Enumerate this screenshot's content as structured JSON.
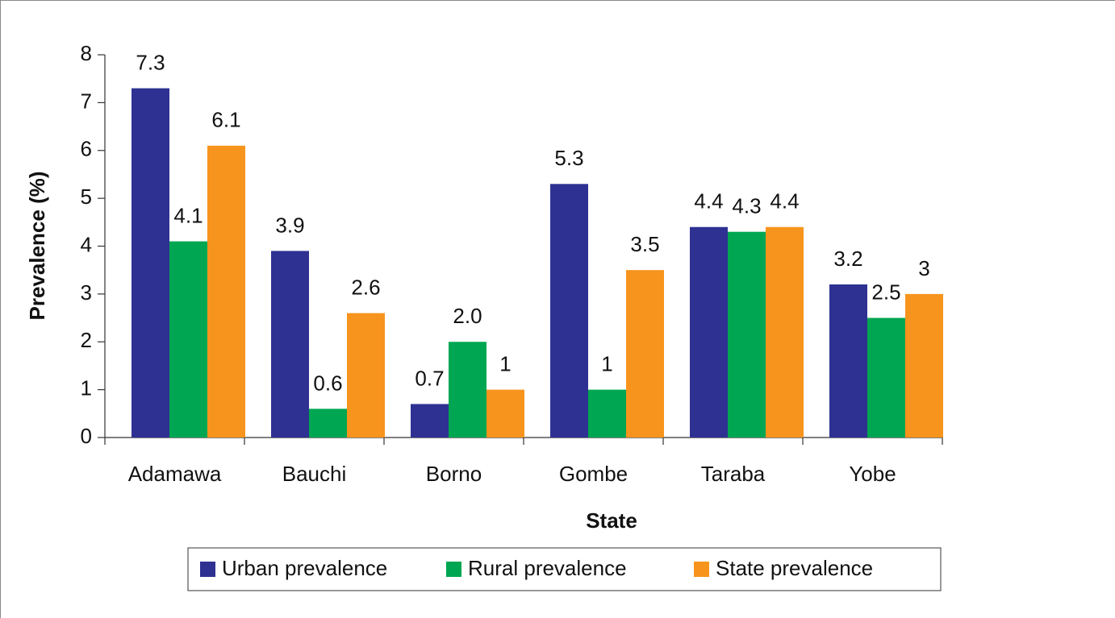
{
  "chart_data": {
    "type": "bar",
    "x_label": "State",
    "y_label": "Prevalence (%)",
    "categories": [
      "Adamawa",
      "Bauchi",
      "Borno",
      "Gombe",
      "Taraba",
      "Yobe"
    ],
    "series": [
      {
        "name": "Urban prevalence",
        "color": "#2e3192",
        "values": [
          7.3,
          3.9,
          0.7,
          5.3,
          4.4,
          3.2
        ]
      },
      {
        "name": "Rural prevalence",
        "color": "#00a651",
        "values": [
          4.1,
          0.6,
          2.0,
          1,
          4.3,
          2.5
        ],
        "value_labels": [
          "4.1",
          "0.6",
          "2.0",
          "1",
          "4.3",
          "2.5"
        ]
      },
      {
        "name": "State prevalence",
        "color": "#f7941d",
        "values": [
          6.1,
          2.6,
          1,
          3.5,
          4.4,
          3
        ]
      }
    ],
    "ylim": [
      0,
      8
    ],
    "yticks": [
      0,
      1,
      2,
      3,
      4,
      5,
      6,
      7,
      8
    ],
    "legend": "bottom"
  }
}
